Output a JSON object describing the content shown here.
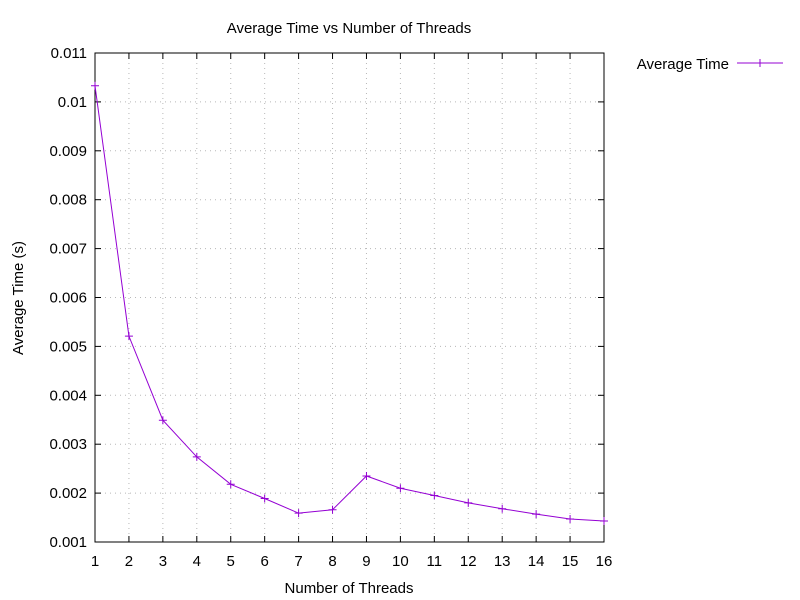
{
  "chart_data": {
    "type": "line",
    "title": "Average Time vs Number of Threads",
    "xlabel": "Number of Threads",
    "ylabel": "Average Time (s)",
    "categories": [
      "1",
      "2",
      "3",
      "4",
      "5",
      "6",
      "7",
      "8",
      "9",
      "10",
      "11",
      "12",
      "13",
      "14",
      "15",
      "16"
    ],
    "series": [
      {
        "name": "Average Time",
        "values": [
          0.01033,
          0.00521,
          0.00349,
          0.00274,
          0.00218,
          0.00189,
          0.00159,
          0.00166,
          0.00235,
          0.0021,
          0.00195,
          0.0018,
          0.00168,
          0.00157,
          0.00147,
          0.00143
        ],
        "color": "#9400d3"
      }
    ],
    "ylim": [
      0.001,
      0.011
    ],
    "yticks": [
      "0.001",
      "0.002",
      "0.003",
      "0.004",
      "0.005",
      "0.006",
      "0.007",
      "0.008",
      "0.009",
      "0.01",
      "0.011"
    ],
    "grid": true,
    "legend_position": "outside-top-right",
    "marker": "plus"
  }
}
